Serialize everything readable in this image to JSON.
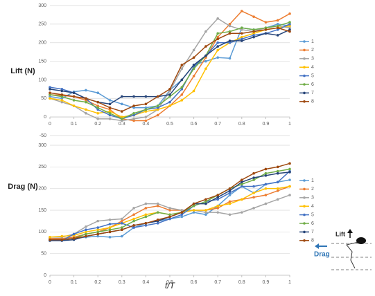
{
  "chart_data": [
    {
      "type": "line",
      "y_label": "Lift (N)",
      "x": [
        0,
        0.05,
        0.1,
        0.15,
        0.2,
        0.25,
        0.3,
        0.35,
        0.4,
        0.45,
        0.5,
        0.55,
        0.6,
        0.65,
        0.7,
        0.75,
        0.8,
        0.85,
        0.9,
        0.95,
        1
      ],
      "xlim": [
        0,
        1
      ],
      "xticks": [
        0,
        0.1,
        0.2,
        0.3,
        0.4,
        0.5,
        0.6,
        0.7,
        0.8,
        0.9,
        1
      ],
      "ylim": [
        -50,
        300
      ],
      "yticks": [
        -50,
        0,
        50,
        100,
        150,
        200,
        250,
        300
      ],
      "grid": true,
      "legend": "right",
      "series": [
        {
          "name": "1",
          "color": "#5B9BD5",
          "values": [
            55,
            50,
            68,
            72,
            65,
            45,
            35,
            25,
            25,
            30,
            72,
            100,
            140,
            150,
            160,
            158,
            240,
            235,
            240,
            250,
            245
          ]
        },
        {
          "name": "2",
          "color": "#ED7D31",
          "values": [
            60,
            58,
            55,
            45,
            30,
            20,
            -5,
            -10,
            -10,
            5,
            30,
            60,
            110,
            160,
            215,
            250,
            285,
            270,
            255,
            260,
            278
          ]
        },
        {
          "name": "3",
          "color": "#A5A5A5",
          "values": [
            50,
            40,
            30,
            10,
            -5,
            -5,
            -10,
            -5,
            0,
            20,
            70,
            130,
            180,
            230,
            265,
            245,
            235,
            230,
            240,
            245,
            240
          ]
        },
        {
          "name": "4",
          "color": "#FFC000",
          "values": [
            50,
            45,
            30,
            20,
            10,
            15,
            0,
            5,
            15,
            20,
            30,
            45,
            70,
            130,
            180,
            200,
            215,
            225,
            235,
            240,
            245
          ]
        },
        {
          "name": "5",
          "color": "#4472C4",
          "values": [
            80,
            75,
            65,
            50,
            20,
            5,
            -5,
            5,
            20,
            25,
            40,
            75,
            135,
            165,
            200,
            200,
            210,
            220,
            225,
            235,
            250
          ]
        },
        {
          "name": "6",
          "color": "#70AD47",
          "values": [
            60,
            55,
            45,
            40,
            25,
            10,
            -5,
            10,
            20,
            30,
            55,
            80,
            130,
            165,
            225,
            230,
            240,
            235,
            240,
            245,
            255
          ]
        },
        {
          "name": "7",
          "color": "#264478",
          "values": [
            75,
            70,
            65,
            50,
            40,
            35,
            55,
            55,
            55,
            55,
            60,
            100,
            140,
            165,
            190,
            205,
            205,
            215,
            225,
            220,
            235
          ]
        },
        {
          "name": "8",
          "color": "#9E480E",
          "values": [
            65,
            60,
            55,
            50,
            40,
            25,
            15,
            30,
            35,
            55,
            75,
            140,
            160,
            190,
            210,
            225,
            225,
            230,
            235,
            240,
            230
          ]
        }
      ]
    },
    {
      "type": "line",
      "y_label": "Drag (N)",
      "x_label": "t/T",
      "annotations": [
        "Lift",
        "Drag"
      ],
      "x": [
        0,
        0.05,
        0.1,
        0.15,
        0.2,
        0.25,
        0.3,
        0.35,
        0.4,
        0.45,
        0.5,
        0.55,
        0.6,
        0.65,
        0.7,
        0.75,
        0.8,
        0.85,
        0.9,
        0.95,
        1
      ],
      "xlim": [
        0,
        1
      ],
      "xticks": [
        0,
        0.1,
        0.2,
        0.3,
        0.4,
        0.5,
        0.6,
        0.7,
        0.8,
        0.9,
        1
      ],
      "ylim": [
        0,
        300
      ],
      "yticks": [
        0,
        50,
        100,
        150,
        200,
        250,
        300
      ],
      "grid": true,
      "legend": "right",
      "series": [
        {
          "name": "1",
          "color": "#5B9BD5",
          "values": [
            85,
            83,
            85,
            88,
            90,
            88,
            90,
            110,
            120,
            125,
            130,
            135,
            145,
            140,
            160,
            185,
            205,
            190,
            210,
            215,
            220
          ]
        },
        {
          "name": "2",
          "color": "#ED7D31",
          "values": [
            85,
            85,
            88,
            95,
            100,
            110,
            125,
            140,
            155,
            160,
            150,
            150,
            150,
            150,
            155,
            170,
            175,
            180,
            185,
            195,
            205
          ]
        },
        {
          "name": "3",
          "color": "#A5A5A5",
          "values": [
            88,
            88,
            95,
            112,
            125,
            128,
            130,
            155,
            165,
            165,
            155,
            150,
            150,
            145,
            145,
            140,
            145,
            155,
            165,
            175,
            185
          ]
        },
        {
          "name": "4",
          "color": "#FFC000",
          "values": [
            88,
            90,
            92,
            100,
            105,
            110,
            120,
            130,
            140,
            145,
            140,
            145,
            150,
            150,
            160,
            165,
            175,
            190,
            200,
            200,
            205
          ]
        },
        {
          "name": "5",
          "color": "#4472C4",
          "values": [
            80,
            80,
            95,
            105,
            110,
            118,
            120,
            110,
            115,
            120,
            130,
            140,
            160,
            170,
            175,
            190,
            205,
            205,
            210,
            215,
            240
          ]
        },
        {
          "name": "6",
          "color": "#70AD47",
          "values": [
            82,
            82,
            85,
            95,
            100,
            105,
            110,
            125,
            135,
            145,
            140,
            145,
            160,
            170,
            185,
            200,
            210,
            220,
            235,
            240,
            245
          ]
        },
        {
          "name": "7",
          "color": "#264478",
          "values": [
            80,
            80,
            82,
            90,
            95,
            100,
            105,
            115,
            120,
            125,
            135,
            145,
            165,
            165,
            180,
            195,
            215,
            225,
            230,
            235,
            238
          ]
        },
        {
          "name": "8",
          "color": "#9E480E",
          "values": [
            82,
            82,
            85,
            90,
            95,
            100,
            105,
            115,
            120,
            128,
            135,
            145,
            165,
            175,
            185,
            200,
            220,
            235,
            245,
            250,
            258
          ]
        }
      ]
    }
  ]
}
